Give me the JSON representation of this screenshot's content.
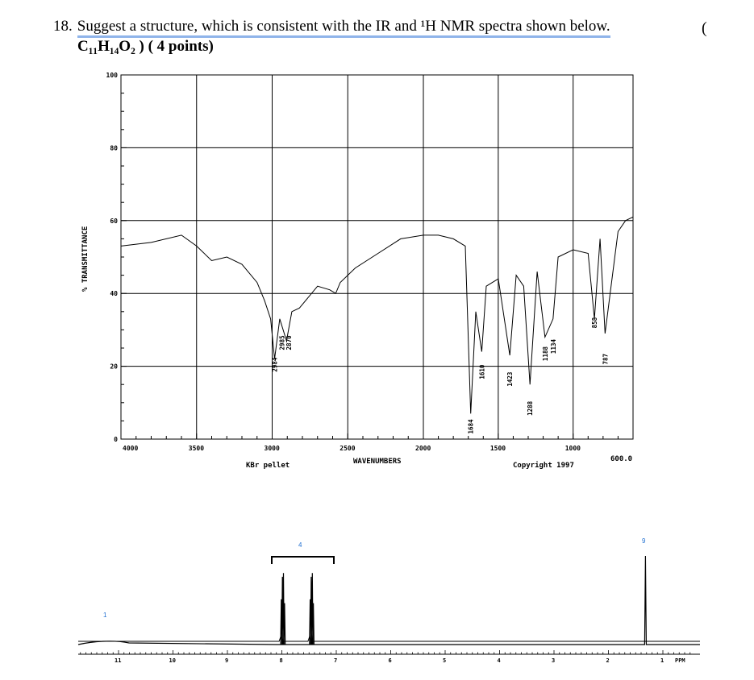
{
  "question": {
    "number": "18.",
    "text": "Suggest a structure, which is consistent with the IR and ¹H NMR spectra shown below.",
    "formula": "C₁₁H₁₄O₂ )  ( 4 points)",
    "trailing": "("
  },
  "ir": {
    "ylabel": "% TRANSMITTANCE",
    "xlabel": "WAVENUMBERS",
    "sample": "KBr pellet",
    "copyright": "Copyright 1997",
    "xmax_label": "600.0",
    "yticks": [
      "100",
      "80",
      "60",
      "40",
      "20",
      "0"
    ],
    "xticks": [
      "4000",
      "3500",
      "3000",
      "2500",
      "2000",
      "1500",
      "1000"
    ],
    "peak_labels": [
      "2984",
      "2985",
      "2870",
      "1684",
      "1610",
      "1423",
      "1288",
      "1188",
      "1134",
      "858",
      "787"
    ]
  },
  "nmr": {
    "xlabel": "PPM",
    "integrals": [
      "1",
      "4",
      "9"
    ],
    "xticks": [
      "11",
      "10",
      "9",
      "8",
      "7",
      "6",
      "5",
      "4",
      "3",
      "2",
      "1"
    ]
  },
  "chart_data": [
    {
      "type": "line",
      "title": "",
      "xlabel": "WAVENUMBERS",
      "ylabel": "% TRANSMITTANCE",
      "xlim": [
        4000,
        600
      ],
      "ylim": [
        0,
        100
      ],
      "grid": true,
      "x": [
        4000,
        3800,
        3600,
        3500,
        3400,
        3300,
        3200,
        3100,
        3050,
        3010,
        2984,
        2950,
        2905,
        2870,
        2820,
        2700,
        2620,
        2580,
        2550,
        2450,
        2300,
        2150,
        2000,
        1900,
        1800,
        1720,
        1684,
        1650,
        1610,
        1580,
        1500,
        1423,
        1380,
        1330,
        1288,
        1240,
        1188,
        1134,
        1100,
        1000,
        900,
        858,
        820,
        787,
        700,
        650,
        600
      ],
      "y": [
        53,
        54,
        56,
        53,
        49,
        50,
        48,
        43,
        38,
        33,
        22,
        33,
        27,
        35,
        36,
        42,
        41,
        40,
        43,
        47,
        51,
        55,
        56,
        56,
        55,
        53,
        7,
        35,
        24,
        42,
        44,
        23,
        45,
        42,
        15,
        46,
        28,
        33,
        50,
        52,
        51,
        33,
        55,
        29,
        57,
        60,
        61
      ],
      "series": [
        {
          "name": "",
          "peaks": [
            2984,
            2985,
            2870,
            1684,
            1610,
            1423,
            1288,
            1188,
            1134,
            858,
            787
          ]
        }
      ]
    },
    {
      "type": "line",
      "title": "",
      "xlabel": "PPM",
      "ylabel": "",
      "xlim": [
        12,
        0
      ],
      "x": [
        12,
        11.5,
        11,
        10,
        9,
        8.05,
        7.98,
        7.95,
        7.52,
        7.46,
        7.4,
        6,
        5,
        4,
        3,
        2,
        1.38,
        1.32,
        1.3,
        1.25,
        0.5
      ],
      "y": [
        0,
        0.03,
        0.05,
        0.02,
        0.01,
        0.1,
        0.95,
        0.1,
        0.1,
        0.95,
        0.1,
        0,
        0,
        0,
        0,
        0,
        0,
        1.0,
        0,
        0,
        0
      ],
      "integrals": [
        {
          "ppm": 11.3,
          "value": "1"
        },
        {
          "ppm": 7.7,
          "value": "4"
        },
        {
          "ppm": 1.32,
          "value": "9"
        }
      ]
    }
  ]
}
